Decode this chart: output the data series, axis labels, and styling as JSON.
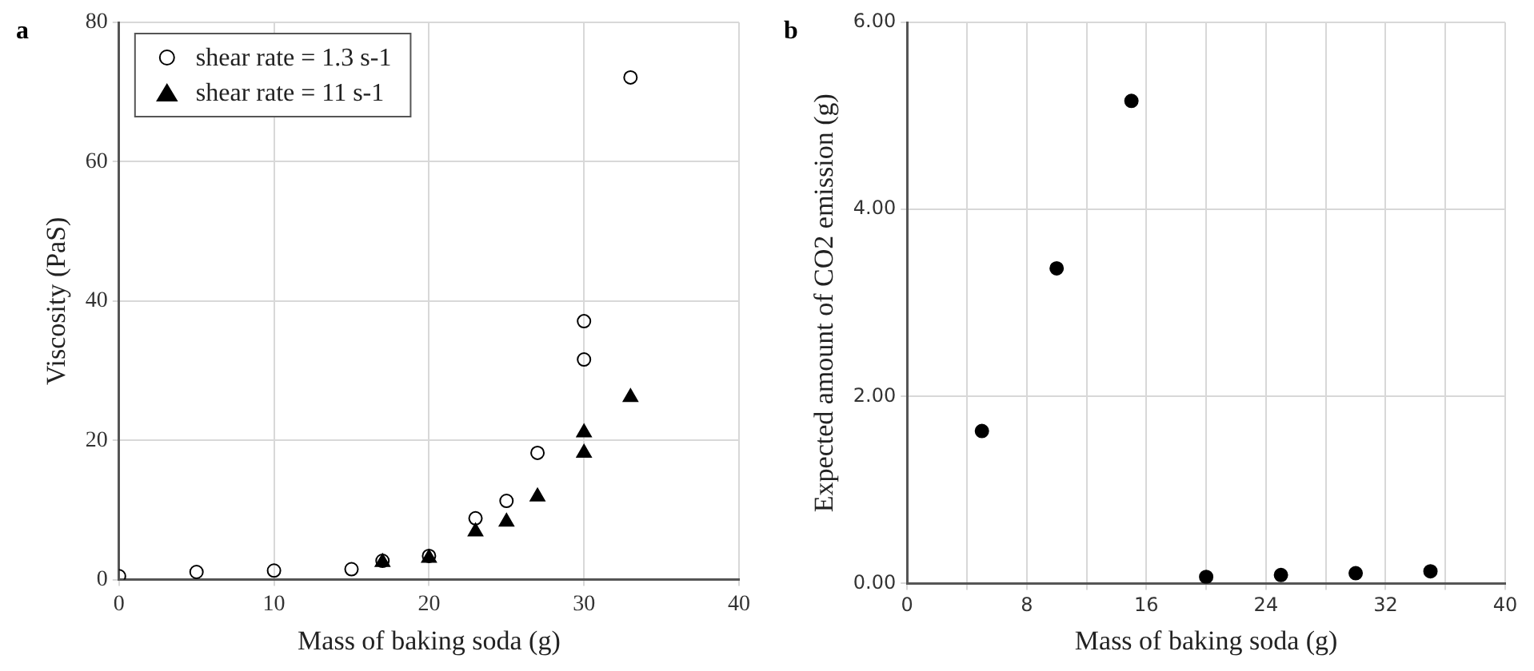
{
  "chart_data": [
    {
      "type": "scatter",
      "title": "a",
      "xlabel": "Mass of baking soda (g)",
      "ylabel": "Viscosity (PaS)",
      "xlim": [
        0,
        40
      ],
      "xticks": [
        0,
        10,
        20,
        30,
        40
      ],
      "ylim": [
        0,
        80
      ],
      "yticks": [
        0,
        20,
        40,
        60,
        80
      ],
      "grid": true,
      "legend": "top left",
      "series": [
        {
          "name": "shear rate = 1.3 s-1",
          "color": "#000000",
          "marker": "circle",
          "x": [
            0,
            5,
            10,
            15,
            17,
            20,
            23,
            25,
            27,
            30,
            30,
            33
          ],
          "values": [
            0.5,
            1.1,
            1.3,
            1.5,
            2.7,
            3.4,
            8.8,
            11.3,
            18.2,
            31.6,
            37.1,
            72.1
          ]
        },
        {
          "name": "shear rate = 11 s-1",
          "color": "#000000",
          "marker": "triangle",
          "x": [
            17,
            20,
            23,
            25,
            27,
            30,
            30,
            33
          ],
          "values": [
            2.5,
            3.1,
            6.9,
            8.3,
            11.9,
            18.2,
            21.1,
            26.2
          ]
        }
      ]
    },
    {
      "type": "scatter",
      "title": "b",
      "xlabel": "Mass of baking soda (g)",
      "ylabel": "Expected amount of CO2 emission (g)",
      "xlim": [
        0,
        40
      ],
      "xticks": [
        0,
        {
          "value": 4,
          "label": null
        },
        8,
        {
          "value": 12,
          "label": null
        },
        16,
        {
          "value": 20,
          "label": null
        },
        24,
        {
          "value": 28,
          "label": null
        },
        32,
        {
          "value": 36,
          "label": null
        },
        40
      ],
      "ylim": [
        0,
        6
      ],
      "yticks": [
        {
          "value": 0,
          "label": "0.00"
        },
        {
          "value": 2,
          "label": "2.00"
        },
        {
          "value": 4,
          "label": "4.00"
        },
        {
          "value": 6,
          "label": "6.00"
        }
      ],
      "grid": true,
      "marker": "circle",
      "series": [
        {
          "color": "#000000",
          "x": [
            5,
            10,
            15,
            20,
            25,
            30,
            35
          ],
          "values": [
            1.63,
            3.37,
            5.16,
            0.07,
            0.09,
            0.11,
            0.13
          ]
        }
      ]
    }
  ]
}
